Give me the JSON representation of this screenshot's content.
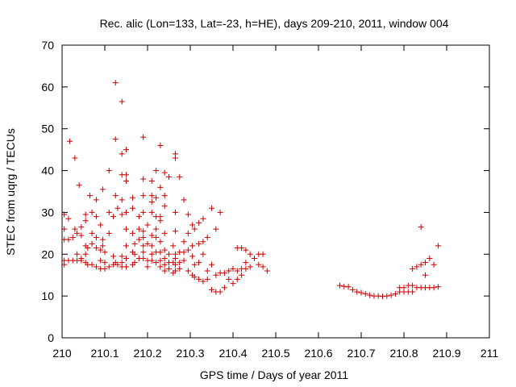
{
  "chart_data": {
    "type": "scatter",
    "title": "Rec. alic (Lon=133, Lat=-23, h=HE), days 209-210, 2011, window 004",
    "xlabel": "GPS time / Days of year 2011",
    "ylabel": "STEC from uqrg / TECUs",
    "xlim": [
      210,
      211
    ],
    "ylim": [
      0,
      70
    ],
    "x_ticks": [
      "210",
      "210.1",
      "210.2",
      "210.3",
      "210.4",
      "210.5",
      "210.6",
      "210.7",
      "210.8",
      "210.9",
      "211"
    ],
    "y_ticks": [
      "0",
      "10",
      "20",
      "30",
      "40",
      "50",
      "60",
      "70"
    ],
    "marker": "+",
    "color": "#cc0000",
    "grid": false,
    "points": [
      [
        210.005,
        29.5
      ],
      [
        210.005,
        26
      ],
      [
        210.005,
        23.5
      ],
      [
        210.005,
        18.5
      ],
      [
        210.005,
        17.5
      ],
      [
        210.015,
        28.5
      ],
      [
        210.015,
        23.5
      ],
      [
        210.015,
        18.5
      ],
      [
        210.018,
        47
      ],
      [
        210.025,
        24
      ],
      [
        210.025,
        18.5
      ],
      [
        210.03,
        43
      ],
      [
        210.03,
        26
      ],
      [
        210.035,
        25
      ],
      [
        210.035,
        20
      ],
      [
        210.035,
        18.5
      ],
      [
        210.04,
        36.5
      ],
      [
        210.045,
        26.5
      ],
      [
        210.045,
        24.5
      ],
      [
        210.045,
        19
      ],
      [
        210.045,
        18.5
      ],
      [
        210.055,
        29.5
      ],
      [
        210.055,
        28
      ],
      [
        210.055,
        22
      ],
      [
        210.055,
        20
      ],
      [
        210.055,
        18
      ],
      [
        210.06,
        21.5
      ],
      [
        210.06,
        17.5
      ],
      [
        210.065,
        34
      ],
      [
        210.07,
        30
      ],
      [
        210.07,
        25
      ],
      [
        210.07,
        22.5
      ],
      [
        210.07,
        17.5
      ],
      [
        210.08,
        33
      ],
      [
        210.08,
        29
      ],
      [
        210.08,
        24
      ],
      [
        210.08,
        21.5
      ],
      [
        210.08,
        17
      ],
      [
        210.09,
        27
      ],
      [
        210.09,
        21
      ],
      [
        210.09,
        18.5
      ],
      [
        210.09,
        16.5
      ],
      [
        210.095,
        35.5
      ],
      [
        210.095,
        23.5
      ],
      [
        210.095,
        22
      ],
      [
        210.1,
        20.5
      ],
      [
        210.1,
        18
      ],
      [
        210.1,
        16.5
      ],
      [
        210.11,
        40
      ],
      [
        210.11,
        30
      ],
      [
        210.11,
        25
      ],
      [
        210.11,
        17
      ],
      [
        210.12,
        29
      ],
      [
        210.12,
        19.5
      ],
      [
        210.12,
        17.5
      ],
      [
        210.125,
        61
      ],
      [
        210.125,
        47.5
      ],
      [
        210.125,
        34
      ],
      [
        210.125,
        18
      ],
      [
        210.13,
        31
      ],
      [
        210.13,
        17.5
      ],
      [
        210.14,
        56.5
      ],
      [
        210.14,
        44
      ],
      [
        210.14,
        39
      ],
      [
        210.14,
        33
      ],
      [
        210.14,
        29.5
      ],
      [
        210.14,
        19.5
      ],
      [
        210.14,
        18
      ],
      [
        210.14,
        17
      ],
      [
        210.15,
        45
      ],
      [
        210.15,
        39
      ],
      [
        210.15,
        37.5
      ],
      [
        210.15,
        30
      ],
      [
        210.15,
        26
      ],
      [
        210.15,
        22
      ],
      [
        210.15,
        19
      ],
      [
        210.15,
        17
      ],
      [
        210.165,
        33.5
      ],
      [
        210.165,
        31
      ],
      [
        210.165,
        25
      ],
      [
        210.165,
        20.5
      ],
      [
        210.165,
        17.5
      ],
      [
        210.17,
        22.5
      ],
      [
        210.17,
        20
      ],
      [
        210.17,
        18
      ],
      [
        210.18,
        29
      ],
      [
        210.18,
        26
      ],
      [
        210.18,
        23.5
      ],
      [
        210.18,
        19
      ],
      [
        210.19,
        48
      ],
      [
        210.19,
        38
      ],
      [
        210.19,
        34
      ],
      [
        210.19,
        30
      ],
      [
        210.19,
        25.5
      ],
      [
        210.19,
        24
      ],
      [
        210.19,
        22
      ],
      [
        210.19,
        20.5
      ],
      [
        210.19,
        19
      ],
      [
        210.2,
        27
      ],
      [
        210.2,
        22.5
      ],
      [
        210.2,
        18.5
      ],
      [
        210.2,
        17
      ],
      [
        210.21,
        37.5
      ],
      [
        210.21,
        34
      ],
      [
        210.21,
        32.5
      ],
      [
        210.21,
        30
      ],
      [
        210.21,
        24.5
      ],
      [
        210.21,
        22
      ],
      [
        210.21,
        20
      ],
      [
        210.21,
        18.5
      ],
      [
        210.22,
        40
      ],
      [
        210.22,
        33.5
      ],
      [
        210.22,
        29
      ],
      [
        210.22,
        26
      ],
      [
        210.22,
        24
      ],
      [
        210.22,
        20.5
      ],
      [
        210.22,
        18
      ],
      [
        210.23,
        46
      ],
      [
        210.23,
        36
      ],
      [
        210.23,
        29
      ],
      [
        210.23,
        28
      ],
      [
        210.23,
        23
      ],
      [
        210.23,
        20.5
      ],
      [
        210.23,
        18.5
      ],
      [
        210.23,
        17
      ],
      [
        210.24,
        39.5
      ],
      [
        210.24,
        34
      ],
      [
        210.24,
        31.5
      ],
      [
        210.24,
        25
      ],
      [
        210.24,
        21
      ],
      [
        210.24,
        19
      ],
      [
        210.24,
        17.5
      ],
      [
        210.24,
        16
      ],
      [
        210.25,
        38.5
      ],
      [
        210.25,
        20
      ],
      [
        210.25,
        18
      ],
      [
        210.25,
        16.5
      ],
      [
        210.26,
        22
      ],
      [
        210.26,
        18
      ],
      [
        210.26,
        15.5
      ],
      [
        210.265,
        44
      ],
      [
        210.265,
        43
      ],
      [
        210.265,
        30
      ],
      [
        210.265,
        25.5
      ],
      [
        210.265,
        20
      ],
      [
        210.265,
        19
      ],
      [
        210.265,
        17.5
      ],
      [
        210.265,
        16
      ],
      [
        210.275,
        38.5
      ],
      [
        210.275,
        20.5
      ],
      [
        210.275,
        18
      ],
      [
        210.275,
        16.5
      ],
      [
        210.285,
        33
      ],
      [
        210.285,
        23
      ],
      [
        210.285,
        20.5
      ],
      [
        210.285,
        18.5
      ],
      [
        210.295,
        29.5
      ],
      [
        210.295,
        25
      ],
      [
        210.295,
        21
      ],
      [
        210.295,
        16
      ],
      [
        210.305,
        27
      ],
      [
        210.305,
        22
      ],
      [
        210.305,
        19.5
      ],
      [
        210.305,
        15
      ],
      [
        210.31,
        26
      ],
      [
        210.31,
        17.5
      ],
      [
        210.31,
        14.5
      ],
      [
        210.32,
        27.5
      ],
      [
        210.32,
        22.5
      ],
      [
        210.32,
        18
      ],
      [
        210.32,
        14
      ],
      [
        210.33,
        28.5
      ],
      [
        210.33,
        23
      ],
      [
        210.33,
        20
      ],
      [
        210.33,
        13.5
      ],
      [
        210.34,
        24
      ],
      [
        210.34,
        16
      ],
      [
        210.34,
        14
      ],
      [
        210.35,
        31
      ],
      [
        210.35,
        17.5
      ],
      [
        210.35,
        11.5
      ],
      [
        210.36,
        26
      ],
      [
        210.36,
        15
      ],
      [
        210.36,
        11
      ],
      [
        210.37,
        30
      ],
      [
        210.37,
        15.5
      ],
      [
        210.37,
        11
      ],
      [
        210.38,
        15.5
      ],
      [
        210.38,
        12
      ],
      [
        210.39,
        16
      ],
      [
        210.39,
        14
      ],
      [
        210.4,
        16.5
      ],
      [
        210.4,
        13
      ],
      [
        210.41,
        21.5
      ],
      [
        210.41,
        16
      ],
      [
        210.41,
        14
      ],
      [
        210.42,
        21.5
      ],
      [
        210.42,
        16.5
      ],
      [
        210.42,
        15
      ],
      [
        210.43,
        21
      ],
      [
        210.43,
        18
      ],
      [
        210.43,
        16.5
      ],
      [
        210.44,
        20
      ],
      [
        210.44,
        17
      ],
      [
        210.45,
        19
      ],
      [
        210.46,
        20
      ],
      [
        210.46,
        17.5
      ],
      [
        210.47,
        20
      ],
      [
        210.47,
        17
      ],
      [
        210.48,
        16
      ],
      [
        210.65,
        12.5
      ],
      [
        210.66,
        12.3
      ],
      [
        210.67,
        12.2
      ],
      [
        210.68,
        11.5
      ],
      [
        210.69,
        11
      ],
      [
        210.7,
        10.8
      ],
      [
        210.71,
        10.5
      ],
      [
        210.72,
        10.2
      ],
      [
        210.73,
        10.0
      ],
      [
        210.74,
        10.0
      ],
      [
        210.75,
        9.9
      ],
      [
        210.76,
        10.0
      ],
      [
        210.77,
        10.2
      ],
      [
        210.78,
        10.5
      ],
      [
        210.79,
        11.0
      ],
      [
        210.79,
        12.0
      ],
      [
        210.8,
        11.0
      ],
      [
        210.8,
        12.0
      ],
      [
        210.81,
        11.0
      ],
      [
        210.81,
        12.5
      ],
      [
        210.82,
        11.0
      ],
      [
        210.82,
        12.5
      ],
      [
        210.82,
        16.5
      ],
      [
        210.83,
        12.0
      ],
      [
        210.83,
        17.0
      ],
      [
        210.84,
        26.5
      ],
      [
        210.84,
        12.0
      ],
      [
        210.84,
        17.5
      ],
      [
        210.85,
        12.0
      ],
      [
        210.85,
        15.0
      ],
      [
        210.85,
        18.0
      ],
      [
        210.86,
        12.0
      ],
      [
        210.86,
        19.0
      ],
      [
        210.87,
        12.0
      ],
      [
        210.87,
        17.5
      ],
      [
        210.88,
        12.2
      ],
      [
        210.88,
        22.0
      ]
    ]
  }
}
